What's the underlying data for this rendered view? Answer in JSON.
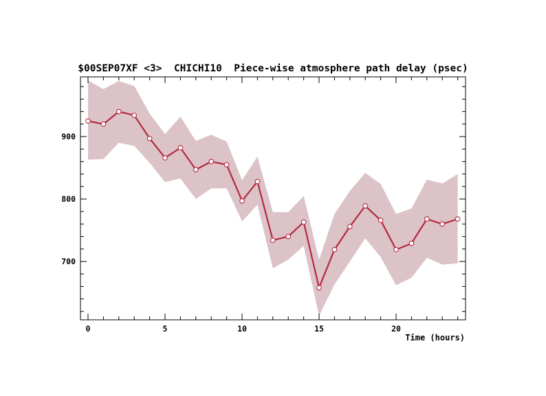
{
  "chart_data": {
    "type": "line",
    "title": "$00SEP07XF <3>  CHICHI10  Piece-wise atmosphere path delay (psec)",
    "xlabel": "Time (hours)",
    "ylabel": "",
    "xlim": [
      -0.5,
      24.5
    ],
    "ylim": [
      610,
      1000
    ],
    "x_ticks": [
      0,
      5,
      10,
      15,
      20
    ],
    "y_ticks": [
      700,
      800,
      900
    ],
    "grid": false,
    "legend": "none",
    "colors": {
      "line": "#b5283f",
      "band": "#dbc3c8",
      "marker_fill": "#ffffff"
    },
    "series": [
      {
        "x": [
          0,
          1,
          2,
          3,
          4,
          5,
          6,
          7,
          8,
          9,
          10,
          11,
          12,
          13,
          14,
          15,
          16,
          17,
          18,
          19,
          20,
          21,
          22,
          23,
          24
        ],
        "values": [
          925,
          920,
          940,
          934,
          897,
          866,
          882,
          847,
          860,
          855,
          797,
          828,
          734,
          740,
          763,
          658,
          719,
          756,
          789,
          766,
          719,
          729,
          768,
          760,
          768
        ],
        "upper": [
          990,
          976,
          989,
          981,
          937,
          904,
          932,
          893,
          903,
          892,
          830,
          868,
          779,
          779,
          805,
          703,
          776,
          813,
          842,
          824,
          776,
          785,
          831,
          825,
          840
        ],
        "lower": [
          863,
          864,
          890,
          885,
          858,
          827,
          833,
          800,
          817,
          817,
          764,
          791,
          689,
          703,
          725,
          613,
          663,
          700,
          737,
          707,
          662,
          674,
          706,
          695,
          697
        ]
      }
    ]
  }
}
